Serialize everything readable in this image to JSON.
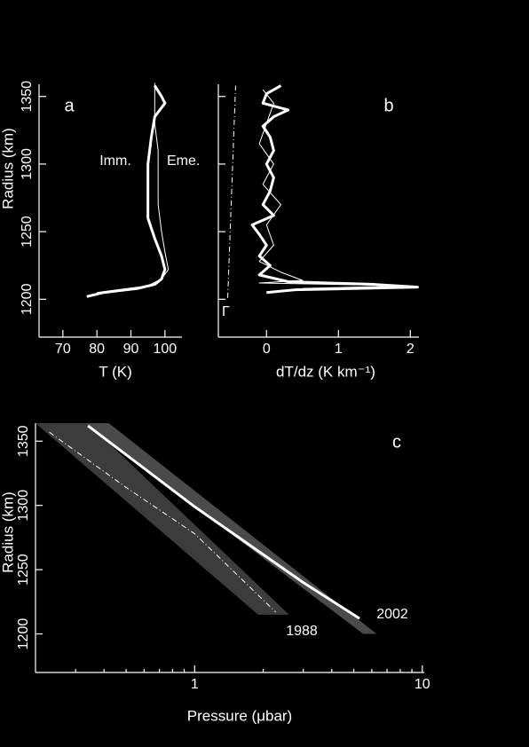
{
  "chart_data": [
    {
      "type": "line",
      "panel_label": "a",
      "xlabel": "T (K)",
      "ylabel": "Radius (km)",
      "xlim": [
        63,
        105
      ],
      "ylim": [
        1172,
        1359
      ],
      "xticks": [
        70,
        80,
        90,
        100
      ],
      "yticks": [
        1200,
        1250,
        1300,
        1350
      ],
      "series": [
        {
          "name": "Imm.",
          "color": "#ffffff",
          "linewidth": 3,
          "style": "solid",
          "x": [
            77,
            82,
            92,
            97,
            99,
            100,
            99,
            97,
            95,
            95,
            95,
            96,
            97,
            100,
            99,
            97
          ],
          "values": [
            1202,
            1205,
            1208,
            1211,
            1215,
            1222,
            1232,
            1245,
            1260,
            1280,
            1300,
            1320,
            1335,
            1345,
            1350,
            1358
          ]
        },
        {
          "name": "Eme.",
          "color": "#ffffff",
          "linewidth": 1,
          "style": "solid",
          "x": [
            80,
            95,
            99,
            101,
            100,
            99,
            98,
            98,
            98,
            97,
            97,
            97
          ],
          "values": [
            1205,
            1210,
            1215,
            1222,
            1235,
            1250,
            1270,
            1290,
            1310,
            1330,
            1345,
            1360
          ]
        }
      ]
    },
    {
      "type": "line",
      "panel_label": "b",
      "xlabel": "dT/dz (K km⁻¹)",
      "xlim": [
        -0.67,
        2.12
      ],
      "ylim": [
        1172,
        1359
      ],
      "xticks": [
        0,
        1,
        2
      ],
      "yticks": [
        1200,
        1250,
        1300,
        1350
      ],
      "series": [
        {
          "name": "Γ",
          "color": "#ffffff",
          "linewidth": 1,
          "style": "dashdot",
          "x": [
            -0.54,
            -0.43
          ],
          "values": [
            1201,
            1358
          ]
        },
        {
          "color": "#ffffff",
          "linewidth": 3,
          "style": "solid",
          "x": [
            0.2,
            0.0,
            -0.05,
            0.3,
            0.1,
            -0.05,
            0.05,
            0.1,
            0.0,
            0.1,
            0.05,
            -0.05,
            0.1,
            -0.2,
            -0.1,
            0.0,
            -0.1,
            0.05,
            -0.1,
            0.3,
            1.5,
            2.1,
            0.4,
            0.0
          ],
          "values": [
            1358,
            1352,
            1345,
            1340,
            1335,
            1328,
            1320,
            1310,
            1300,
            1290,
            1280,
            1270,
            1262,
            1255,
            1248,
            1240,
            1232,
            1225,
            1218,
            1213,
            1211,
            1209,
            1207,
            1205
          ]
        },
        {
          "color": "#ffffff",
          "linewidth": 1,
          "style": "solid",
          "x": [
            -0.05,
            0.1,
            0.0,
            -0.1,
            0.1,
            -0.05,
            0.2,
            0.0,
            0.1,
            -0.1,
            0.2,
            0.5,
            -0.1,
            2.0,
            0.5
          ],
          "values": [
            1355,
            1345,
            1330,
            1315,
            1300,
            1285,
            1270,
            1255,
            1240,
            1228,
            1220,
            1214,
            1212,
            1210,
            1208
          ]
        }
      ]
    },
    {
      "type": "line",
      "panel_label": "c",
      "xlabel": "Pressure (μbar)",
      "ylabel": "Radius (km)",
      "xscale": "log",
      "xlim": [
        0.2,
        10.2
      ],
      "ylim": [
        1170,
        1364
      ],
      "xticks": [
        1,
        10
      ],
      "xminor": [
        0.3,
        0.4,
        0.5,
        0.6,
        0.7,
        0.8,
        0.9,
        2,
        3,
        4,
        5,
        6,
        7,
        8,
        9
      ],
      "yticks": [
        1200,
        1250,
        1300,
        1350
      ],
      "bands": [
        {
          "color": "#3c3c3c",
          "values": [
            1364,
            1215
          ],
          "x_low": [
            0.2,
            1.9
          ],
          "x_high": [
            0.34,
            2.6
          ]
        },
        {
          "color": "#4a4a4a",
          "values": [
            1364,
            1200
          ],
          "x_low": [
            0.33,
            5.5
          ],
          "x_high": [
            0.42,
            6.3
          ]
        }
      ],
      "series": [
        {
          "name": "1988",
          "color": "#ffffff",
          "linewidth": 1,
          "style": "dashdot",
          "x": [
            0.23,
            0.5,
            1,
            2.27
          ],
          "values": [
            1357,
            1314,
            1278,
            1217
          ]
        },
        {
          "name": "2002",
          "color": "#ffffff",
          "linewidth": 3,
          "style": "solid",
          "x": [
            0.34,
            1,
            3,
            5.3
          ],
          "values": [
            1362,
            1299,
            1240,
            1212
          ]
        }
      ]
    }
  ]
}
